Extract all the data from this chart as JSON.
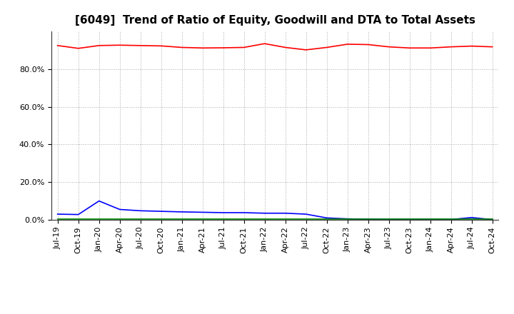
{
  "title": "[6049]  Trend of Ratio of Equity, Goodwill and DTA to Total Assets",
  "x_labels": [
    "Jul-19",
    "Oct-19",
    "Jan-20",
    "Apr-20",
    "Jul-20",
    "Oct-20",
    "Jan-21",
    "Apr-21",
    "Jul-21",
    "Oct-21",
    "Jan-22",
    "Apr-22",
    "Jul-22",
    "Oct-22",
    "Jan-23",
    "Apr-23",
    "Jul-23",
    "Oct-23",
    "Jan-24",
    "Apr-24",
    "Jul-24",
    "Oct-24"
  ],
  "equity": [
    92.5,
    91.0,
    92.5,
    92.7,
    92.5,
    92.3,
    91.5,
    91.2,
    91.3,
    91.5,
    93.5,
    91.5,
    90.2,
    91.5,
    93.2,
    93.0,
    91.8,
    91.2,
    91.2,
    91.8,
    92.2,
    91.8
  ],
  "goodwill": [
    3.0,
    2.8,
    10.0,
    5.5,
    4.8,
    4.5,
    4.2,
    4.0,
    3.8,
    3.8,
    3.5,
    3.5,
    3.0,
    1.0,
    0.5,
    0.3,
    0.2,
    0.2,
    0.2,
    0.15,
    1.2,
    0.1
  ],
  "dta": [
    0.2,
    0.2,
    0.2,
    0.2,
    0.2,
    0.2,
    0.2,
    0.2,
    0.2,
    0.2,
    0.2,
    0.2,
    0.2,
    0.2,
    0.2,
    0.2,
    0.2,
    0.2,
    0.2,
    0.2,
    0.2,
    0.2
  ],
  "equity_color": "#ff0000",
  "goodwill_color": "#0000ff",
  "dta_color": "#008000",
  "ylim_min": 0,
  "ylim_max": 100,
  "yticks": [
    0,
    20,
    40,
    60,
    80
  ],
  "background_color": "#ffffff",
  "grid_color": "#aaaaaa",
  "title_fontsize": 11,
  "tick_fontsize": 8,
  "legend_fontsize": 9
}
